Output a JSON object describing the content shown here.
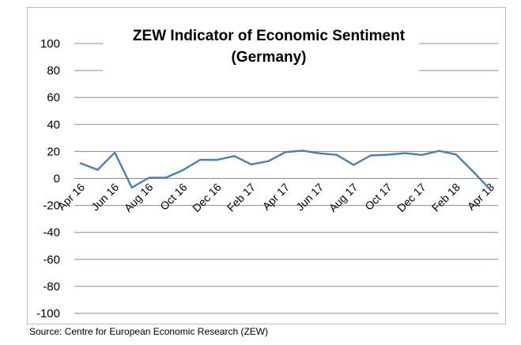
{
  "chart_data": {
    "type": "line",
    "title": "ZEW Indicator of Economic Sentiment",
    "subtitle": "(Germany)",
    "xlabel": "",
    "ylabel": "",
    "ylim": [
      -100,
      100
    ],
    "yticks": [
      100,
      80,
      60,
      40,
      20,
      0,
      -20,
      -40,
      -60,
      -80,
      -100
    ],
    "tick_labels": [
      "Apr 16",
      "Jun 16",
      "Aug 16",
      "Oct 16",
      "Dec 16",
      "Feb 17",
      "Apr 17",
      "Jun 17",
      "Aug 17",
      "Oct 17",
      "Dec 17",
      "Feb 18",
      "Apr 18"
    ],
    "grid": true,
    "legend": "none",
    "series": [
      {
        "color": "#4a7ebb",
        "values": [
          11.2,
          6.4,
          19.2,
          -6.8,
          0.5,
          0.6,
          6.2,
          13.8,
          13.8,
          16.6,
          10.4,
          12.8,
          19.5,
          20.6,
          18.6,
          17.5,
          10.0,
          17.0,
          17.6,
          18.7,
          17.4,
          20.4,
          17.8,
          5.1,
          -8.2
        ]
      }
    ]
  },
  "source": "Source: Centre for European Economic Research (ZEW)"
}
